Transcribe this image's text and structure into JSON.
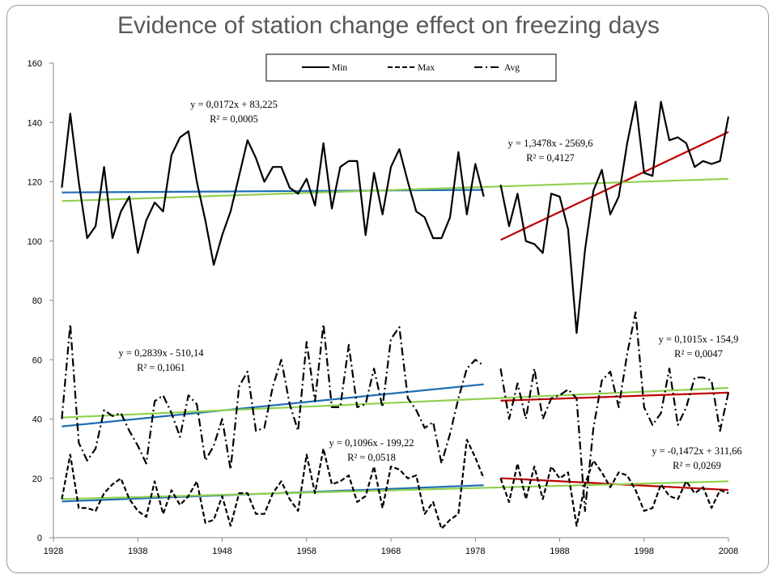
{
  "title": "Evidence of station change effect on freezing days",
  "chart_data": {
    "type": "line",
    "title": "Evidence of station change effect on freezing days",
    "xlim": [
      1928,
      2008
    ],
    "ylim": [
      0,
      160
    ],
    "x_ticks": [
      1928,
      1938,
      1948,
      1958,
      1968,
      1978,
      1988,
      1998,
      2008
    ],
    "y_ticks": [
      0,
      20,
      40,
      60,
      80,
      100,
      120,
      140,
      160
    ],
    "grid": false,
    "legend_position": "top-center",
    "legend": [
      "Min",
      "Max",
      "Avg"
    ],
    "series": [
      {
        "name": "Min",
        "style": "solid",
        "color": "#000000",
        "segments": [
          {
            "x_start": 1929,
            "values": [
              118,
              143,
              120,
              101,
              105,
              125,
              101,
              110,
              115,
              96,
              107,
              113,
              110,
              129,
              135,
              137,
              120,
              107,
              92,
              102,
              110,
              122,
              134,
              128,
              120,
              125,
              125,
              118,
              116,
              121,
              112,
              133,
              111,
              125,
              127,
              127,
              102,
              123,
              109,
              125,
              131,
              120,
              110,
              108,
              101,
              101,
              108,
              130,
              109,
              126,
              115
            ]
          },
          {
            "x_start": 1981,
            "values": [
              119,
              105,
              116,
              100,
              99,
              96,
              116,
              115,
              104,
              69,
              97,
              117,
              124,
              109,
              115,
              133,
              147,
              123,
              122,
              147,
              134,
              135,
              133,
              125,
              127,
              126,
              127,
              142
            ]
          }
        ]
      },
      {
        "name": "Max",
        "style": "dashed",
        "color": "#000000",
        "segments": [
          {
            "x_start": 1929,
            "values": [
              13,
              28,
              10,
              10,
              9,
              15,
              18,
              20,
              13,
              9,
              7,
              19,
              8,
              16,
              11,
              14,
              19,
              5,
              6,
              14,
              4,
              15,
              15,
              8,
              8,
              15,
              19,
              13,
              9,
              28,
              15,
              30,
              18,
              19,
              21,
              12,
              14,
              24,
              10,
              24,
              23,
              20,
              21,
              8,
              12,
              3,
              6,
              8,
              33,
              27,
              20
            ]
          },
          {
            "x_start": 1981,
            "values": [
              20,
              12,
              25,
              13,
              24,
              13,
              24,
              20,
              22,
              4,
              18,
              26,
              22,
              17,
              22,
              21,
              16,
              9,
              10,
              18,
              14,
              13,
              19,
              15,
              17,
              10,
              16,
              15
            ]
          }
        ]
      },
      {
        "name": "Avg",
        "style": "dash-dot",
        "color": "#000000",
        "segments": [
          {
            "x_start": 1929,
            "values": [
              40,
              72,
              32,
              26,
              30,
              43,
              41,
              42,
              36,
              31,
              25,
              46,
              48,
              42,
              34,
              48,
              45,
              26,
              31,
              40,
              23,
              51,
              56,
              36,
              37,
              51,
              60,
              45,
              36,
              66,
              46,
              72,
              44,
              44,
              65,
              44,
              45,
              57,
              44,
              67,
              71,
              47,
              43,
              37,
              39,
              25,
              35,
              47,
              57,
              60,
              58
            ]
          },
          {
            "x_start": 1981,
            "values": [
              57,
              40,
              52,
              40,
              57,
              40,
              47,
              48,
              50,
              47,
              9,
              37,
              53,
              56,
              44,
              62,
              76,
              44,
              38,
              42,
              57,
              38,
              44,
              54,
              54,
              53,
              36,
              49
            ]
          }
        ]
      }
    ],
    "trendlines": [
      {
        "segment": "Min 1929-1979",
        "color": "#1f6fb4",
        "slope": 0.0172,
        "intercept": 83.225,
        "x_range": [
          1929,
          1979
        ],
        "equation": "y = 0,0172x + 83,225",
        "r2": "R² = 0,0005"
      },
      {
        "segment": "Min 1981-2008",
        "color": "#c00000",
        "slope": 1.3478,
        "intercept": -2569.6,
        "x_range": [
          1981,
          2008
        ],
        "equation": "y = 1,3478x - 2569,6",
        "r2": "R² = 0,4127"
      },
      {
        "segment": "Avg 1929-1979",
        "color": "#1f6fb4",
        "slope": 0.2839,
        "intercept": -510.14,
        "x_range": [
          1929,
          1979
        ],
        "equation": "y = 0,2839x - 510,14",
        "r2": "R² = 0,1061"
      },
      {
        "segment": "Avg 1981-2008",
        "color": "#c00000",
        "slope": 0.1015,
        "intercept": -154.9,
        "x_range": [
          1981,
          2008
        ],
        "equation": "y = 0,1015x - 154,9",
        "r2": "R² = 0,0047"
      },
      {
        "segment": "Max 1929-1979",
        "color": "#1f6fb4",
        "slope": 0.1096,
        "intercept": -199.22,
        "x_range": [
          1929,
          1979
        ],
        "equation": "y = 0,1096x - 199,22",
        "r2": "R² = 0,0518"
      },
      {
        "segment": "Max 1981-2008",
        "color": "#c00000",
        "slope": -0.1472,
        "intercept": 311.66,
        "x_range": [
          1981,
          2008
        ],
        "equation": "y = -0,1472x + 311,66",
        "r2": "R² = 0,0269"
      },
      {
        "segment": "Min full period",
        "color": "#92d050",
        "x_range": [
          1929,
          2008
        ],
        "y_range": [
          113.5,
          121
        ]
      },
      {
        "segment": "Avg full period",
        "color": "#92d050",
        "x_range": [
          1929,
          2008
        ],
        "y_range": [
          40.5,
          50.5
        ]
      },
      {
        "segment": "Max full period",
        "color": "#92d050",
        "x_range": [
          1929,
          2008
        ],
        "y_range": [
          13,
          19
        ]
      }
    ]
  }
}
